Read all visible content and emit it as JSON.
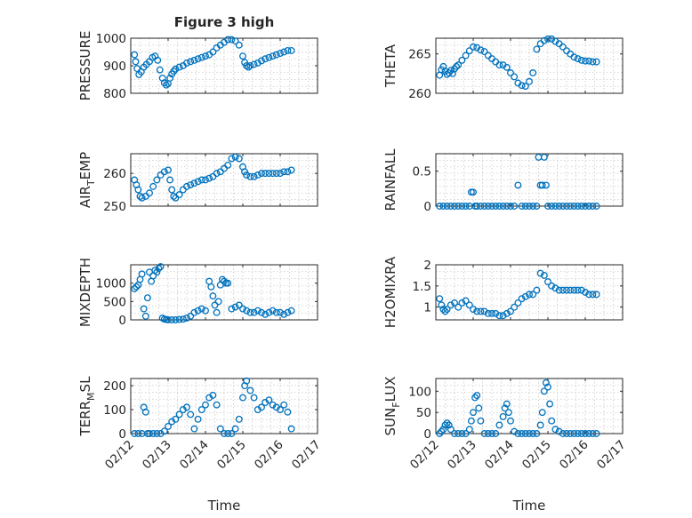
{
  "figure": {
    "title": "Figure 3 high"
  },
  "chart_data": [
    {
      "type": "scatter",
      "id": "pressure",
      "ylabel": "PRESSURE",
      "xlabel": "",
      "ylim": [
        800,
        1000
      ],
      "yticks": [
        800,
        900,
        1000
      ],
      "xlim": [
        0,
        5
      ],
      "xticks": [],
      "xtick_labels": [],
      "grid": true,
      "x": [
        0.1,
        0.13,
        0.17,
        0.22,
        0.28,
        0.35,
        0.42,
        0.5,
        0.58,
        0.65,
        0.72,
        0.78,
        0.85,
        0.9,
        0.95,
        1.0,
        1.05,
        1.1,
        1.15,
        1.2,
        1.3,
        1.4,
        1.5,
        1.6,
        1.7,
        1.8,
        1.9,
        2.0,
        2.1,
        2.2,
        2.3,
        2.4,
        2.5,
        2.6,
        2.7,
        2.8,
        2.9,
        3.0,
        3.05,
        3.1,
        3.15,
        3.2,
        3.3,
        3.4,
        3.5,
        3.6,
        3.7,
        3.8,
        3.9,
        4.0,
        4.1,
        4.2,
        4.3
      ],
      "y": [
        940,
        915,
        890,
        868,
        878,
        895,
        905,
        915,
        930,
        935,
        920,
        885,
        855,
        838,
        830,
        835,
        855,
        870,
        880,
        888,
        895,
        900,
        910,
        915,
        920,
        925,
        930,
        935,
        940,
        950,
        965,
        975,
        985,
        995,
        995,
        990,
        975,
        935,
        912,
        900,
        895,
        900,
        905,
        910,
        918,
        925,
        930,
        935,
        940,
        945,
        950,
        955,
        955
      ]
    },
    {
      "type": "scatter",
      "id": "theta",
      "ylabel": "THETA",
      "xlabel": "",
      "ylim": [
        260,
        267
      ],
      "yticks": [
        260,
        265
      ],
      "xlim": [
        0,
        5
      ],
      "xticks": [],
      "xtick_labels": [],
      "grid": true,
      "x": [
        0.1,
        0.15,
        0.2,
        0.25,
        0.3,
        0.35,
        0.4,
        0.45,
        0.5,
        0.55,
        0.6,
        0.7,
        0.8,
        0.9,
        1.0,
        1.1,
        1.2,
        1.3,
        1.4,
        1.5,
        1.6,
        1.7,
        1.8,
        1.9,
        2.0,
        2.1,
        2.2,
        2.3,
        2.4,
        2.5,
        2.6,
        2.7,
        2.8,
        2.9,
        3.0,
        3.1,
        3.2,
        3.3,
        3.4,
        3.5,
        3.6,
        3.7,
        3.8,
        3.9,
        4.0,
        4.1,
        4.2,
        4.3
      ],
      "y": [
        262.3,
        263.0,
        263.4,
        262.8,
        262.4,
        262.6,
        262.9,
        262.5,
        263.1,
        263.4,
        263.6,
        264.2,
        264.8,
        265.4,
        265.9,
        265.8,
        265.5,
        265.3,
        264.8,
        264.4,
        264.0,
        263.6,
        263.6,
        263.3,
        262.6,
        262.1,
        261.3,
        261.0,
        260.9,
        261.5,
        262.6,
        265.6,
        266.3,
        266.7,
        266.9,
        266.9,
        266.6,
        266.3,
        265.9,
        265.4,
        265.0,
        264.6,
        264.4,
        264.2,
        264.1,
        264.1,
        264.0,
        264.0
      ]
    },
    {
      "type": "scatter",
      "id": "air_temp",
      "ylabel": "AIR_TEMP",
      "xlabel": "",
      "ylim": [
        250,
        266
      ],
      "yticks": [
        250,
        260
      ],
      "xlim": [
        0,
        5
      ],
      "xticks": [],
      "xtick_labels": [],
      "grid": true,
      "x": [
        0.1,
        0.15,
        0.2,
        0.25,
        0.3,
        0.4,
        0.5,
        0.6,
        0.7,
        0.8,
        0.9,
        1.0,
        1.05,
        1.1,
        1.15,
        1.2,
        1.3,
        1.4,
        1.5,
        1.6,
        1.7,
        1.8,
        1.9,
        2.0,
        2.1,
        2.2,
        2.3,
        2.4,
        2.5,
        2.6,
        2.7,
        2.8,
        2.9,
        3.0,
        3.05,
        3.1,
        3.2,
        3.3,
        3.4,
        3.5,
        3.6,
        3.7,
        3.8,
        3.9,
        4.0,
        4.1,
        4.2,
        4.3
      ],
      "y": [
        258.0,
        256.5,
        255.0,
        253.0,
        252.5,
        253.0,
        254.0,
        256.0,
        258.0,
        259.5,
        260.5,
        261.0,
        258.0,
        255.0,
        253.0,
        252.5,
        253.5,
        255.0,
        256.0,
        256.5,
        257.0,
        257.5,
        258.0,
        258.0,
        258.5,
        259.0,
        260.0,
        260.5,
        261.5,
        262.5,
        264.5,
        265.0,
        264.5,
        262.0,
        260.5,
        259.5,
        259.0,
        259.0,
        259.5,
        260.0,
        260.0,
        260.0,
        260.0,
        260.0,
        260.0,
        260.5,
        260.5,
        261.0
      ]
    },
    {
      "type": "scatter",
      "id": "rainfall",
      "ylabel": "RAINFALL",
      "xlabel": "",
      "ylim": [
        0,
        0.75
      ],
      "yticks": [
        0,
        0.5
      ],
      "xlim": [
        0,
        5
      ],
      "xticks": [],
      "xtick_labels": [],
      "grid": true,
      "x": [
        0.1,
        0.2,
        0.3,
        0.4,
        0.5,
        0.6,
        0.7,
        0.8,
        0.9,
        0.95,
        1.0,
        1.05,
        1.1,
        1.2,
        1.3,
        1.4,
        1.5,
        1.6,
        1.7,
        1.8,
        1.9,
        2.0,
        2.1,
        2.2,
        2.3,
        2.4,
        2.5,
        2.6,
        2.7,
        2.75,
        2.8,
        2.85,
        2.9,
        2.95,
        3.0,
        3.1,
        3.2,
        3.3,
        3.4,
        3.5,
        3.6,
        3.7,
        3.8,
        3.9,
        4.0,
        4.1,
        4.2,
        4.3
      ],
      "y": [
        0,
        0,
        0,
        0,
        0,
        0,
        0,
        0,
        0,
        0.2,
        0.2,
        0,
        0,
        0,
        0,
        0,
        0,
        0,
        0,
        0,
        0,
        0,
        0,
        0.3,
        0,
        0,
        0,
        0,
        0,
        0.7,
        0.3,
        0.3,
        0.7,
        0.3,
        0,
        0,
        0,
        0,
        0,
        0,
        0,
        0,
        0,
        0,
        0,
        0,
        0,
        0
      ]
    },
    {
      "type": "scatter",
      "id": "mixdepth",
      "ylabel": "MIXDEPTH",
      "xlabel": "",
      "ylim": [
        0,
        1500
      ],
      "yticks": [
        0,
        500,
        1000
      ],
      "xlim": [
        0,
        5
      ],
      "xticks": [],
      "xtick_labels": [],
      "grid": true,
      "x": [
        0.1,
        0.15,
        0.2,
        0.25,
        0.3,
        0.35,
        0.4,
        0.45,
        0.5,
        0.55,
        0.6,
        0.65,
        0.7,
        0.75,
        0.8,
        0.85,
        0.9,
        0.95,
        1.0,
        1.1,
        1.2,
        1.3,
        1.4,
        1.5,
        1.6,
        1.7,
        1.8,
        1.9,
        2.0,
        2.1,
        2.15,
        2.2,
        2.25,
        2.3,
        2.35,
        2.4,
        2.45,
        2.5,
        2.55,
        2.6,
        2.7,
        2.8,
        2.9,
        3.0,
        3.1,
        3.2,
        3.3,
        3.4,
        3.5,
        3.6,
        3.7,
        3.8,
        3.9,
        4.0,
        4.1,
        4.2,
        4.3
      ],
      "y": [
        850,
        900,
        950,
        1100,
        1250,
        300,
        100,
        600,
        1300,
        1050,
        1200,
        1350,
        1300,
        1400,
        1450,
        50,
        20,
        10,
        0,
        0,
        0,
        10,
        20,
        50,
        100,
        200,
        250,
        300,
        250,
        1050,
        900,
        650,
        400,
        200,
        500,
        950,
        1100,
        1050,
        1000,
        1000,
        300,
        350,
        400,
        300,
        250,
        200,
        200,
        250,
        200,
        150,
        200,
        250,
        200,
        200,
        150,
        200,
        250
      ]
    },
    {
      "type": "scatter",
      "id": "h2omixra",
      "ylabel": "H2OMIXRA",
      "xlabel": "",
      "ylim": [
        0.7,
        2.0
      ],
      "yticks": [
        1,
        1.5,
        2
      ],
      "xlim": [
        0,
        5
      ],
      "xticks": [],
      "xtick_labels": [],
      "grid": true,
      "x": [
        0.1,
        0.15,
        0.2,
        0.25,
        0.3,
        0.4,
        0.5,
        0.6,
        0.7,
        0.8,
        0.9,
        1.0,
        1.1,
        1.2,
        1.3,
        1.4,
        1.5,
        1.6,
        1.7,
        1.8,
        1.9,
        2.0,
        2.1,
        2.2,
        2.3,
        2.4,
        2.5,
        2.6,
        2.7,
        2.8,
        2.9,
        3.0,
        3.1,
        3.2,
        3.3,
        3.4,
        3.5,
        3.6,
        3.7,
        3.8,
        3.9,
        4.0,
        4.1,
        4.2,
        4.3
      ],
      "y": [
        1.2,
        1.05,
        0.95,
        0.9,
        0.95,
        1.05,
        1.1,
        1.0,
        1.1,
        1.15,
        1.05,
        0.95,
        0.9,
        0.9,
        0.9,
        0.85,
        0.85,
        0.85,
        0.8,
        0.8,
        0.85,
        0.9,
        1.0,
        1.1,
        1.2,
        1.25,
        1.3,
        1.3,
        1.4,
        1.8,
        1.75,
        1.6,
        1.5,
        1.45,
        1.4,
        1.4,
        1.4,
        1.4,
        1.4,
        1.4,
        1.4,
        1.35,
        1.3,
        1.3,
        1.3
      ]
    },
    {
      "type": "scatter",
      "id": "terr_msl",
      "ylabel": "TERR_MSL",
      "xlabel": "",
      "ylim": [
        0,
        230
      ],
      "yticks": [
        0,
        100,
        200
      ],
      "xlim": [
        0,
        5
      ],
      "xticks": [
        0,
        1,
        2,
        3,
        4,
        5
      ],
      "xtick_labels": [
        "02/12",
        "02/13",
        "02/14",
        "02/15",
        "02/16",
        "02/17"
      ],
      "grid": true,
      "x": [
        0.1,
        0.2,
        0.3,
        0.35,
        0.4,
        0.45,
        0.5,
        0.6,
        0.7,
        0.8,
        0.9,
        1.0,
        1.1,
        1.2,
        1.3,
        1.4,
        1.5,
        1.6,
        1.7,
        1.8,
        1.9,
        2.0,
        2.1,
        2.2,
        2.3,
        2.4,
        2.5,
        2.6,
        2.7,
        2.8,
        2.9,
        3.0,
        3.05,
        3.1,
        3.2,
        3.3,
        3.4,
        3.5,
        3.6,
        3.7,
        3.8,
        3.9,
        4.0,
        4.1,
        4.2,
        4.3
      ],
      "y": [
        0,
        0,
        0,
        110,
        90,
        0,
        0,
        0,
        0,
        0,
        10,
        30,
        50,
        60,
        80,
        100,
        110,
        80,
        20,
        60,
        100,
        120,
        150,
        160,
        120,
        20,
        0,
        0,
        0,
        20,
        60,
        150,
        200,
        220,
        180,
        150,
        100,
        110,
        130,
        140,
        120,
        110,
        100,
        120,
        90,
        20
      ]
    },
    {
      "type": "scatter",
      "id": "sun_flux",
      "ylabel": "SUN_FLUX",
      "xlabel": "",
      "ylim": [
        0,
        130
      ],
      "yticks": [
        0,
        50,
        100
      ],
      "xlim": [
        0,
        5
      ],
      "xticks": [
        0,
        1,
        2,
        3,
        4,
        5
      ],
      "xtick_labels": [
        "02/12",
        "02/13",
        "02/14",
        "02/15",
        "02/16",
        "02/17"
      ],
      "grid": true,
      "x": [
        0.1,
        0.15,
        0.2,
        0.25,
        0.3,
        0.35,
        0.4,
        0.5,
        0.6,
        0.7,
        0.8,
        0.9,
        0.95,
        1.0,
        1.05,
        1.1,
        1.15,
        1.2,
        1.3,
        1.4,
        1.5,
        1.6,
        1.7,
        1.8,
        1.85,
        1.9,
        1.95,
        2.0,
        2.1,
        2.2,
        2.3,
        2.4,
        2.5,
        2.6,
        2.7,
        2.8,
        2.85,
        2.9,
        2.95,
        3.0,
        3.05,
        3.1,
        3.2,
        3.3,
        3.4,
        3.5,
        3.6,
        3.7,
        3.8,
        3.9,
        4.0,
        4.1,
        4.2,
        4.3
      ],
      "y": [
        0,
        5,
        10,
        20,
        25,
        20,
        10,
        0,
        0,
        0,
        0,
        10,
        30,
        50,
        85,
        90,
        60,
        30,
        0,
        0,
        0,
        0,
        20,
        40,
        60,
        70,
        50,
        30,
        5,
        0,
        0,
        0,
        0,
        0,
        0,
        20,
        50,
        100,
        120,
        110,
        70,
        30,
        10,
        5,
        0,
        0,
        0,
        0,
        0,
        0,
        0,
        0,
        0,
        0
      ]
    }
  ],
  "panels_shared": {
    "time_label": "Time"
  }
}
